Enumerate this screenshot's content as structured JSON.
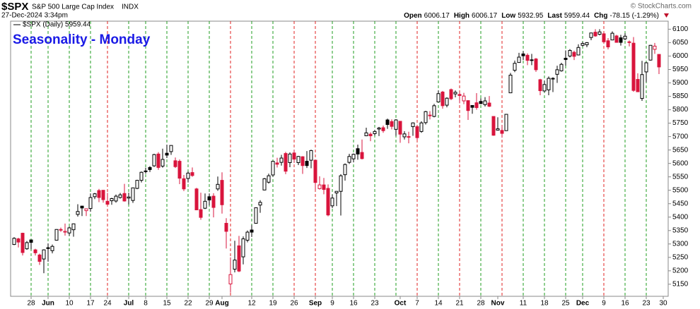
{
  "header": {
    "symbol": "$SPX",
    "name": "S&P 500 Large Cap Index",
    "exchange": "INDX",
    "datetime": "27-Dec-2024 3:34pm",
    "copyright": "© StockCharts.com",
    "quote": [
      {
        "label": "Open",
        "value": "6006.17"
      },
      {
        "label": "High",
        "value": "6006.17"
      },
      {
        "label": "Low",
        "value": "5932.95"
      },
      {
        "label": "Last",
        "value": "5959.44"
      },
      {
        "label": "Chg",
        "value": "-78.15 (-1.29%)"
      }
    ]
  },
  "chart_data": {
    "type": "candlestick",
    "title": "Seasonality - Monday",
    "legend": "$SPX (Daily) 5959.44",
    "up_color": "#000000",
    "down_color": "#d9143c",
    "monday_up_color": "#1f9e1f",
    "monday_down_color": "#e02020",
    "x": [
      "2024-05-21",
      "2024-05-22",
      "2024-05-23",
      "2024-05-24",
      "2024-05-28",
      "2024-05-29",
      "2024-05-30",
      "2024-05-31",
      "2024-06-03",
      "2024-06-04",
      "2024-06-05",
      "2024-06-06",
      "2024-06-07",
      "2024-06-10",
      "2024-06-11",
      "2024-06-12",
      "2024-06-13",
      "2024-06-14",
      "2024-06-17",
      "2024-06-18",
      "2024-06-20",
      "2024-06-21",
      "2024-06-24",
      "2024-06-25",
      "2024-06-26",
      "2024-06-27",
      "2024-06-28",
      "2024-07-01",
      "2024-07-02",
      "2024-07-03",
      "2024-07-05",
      "2024-07-08",
      "2024-07-09",
      "2024-07-10",
      "2024-07-11",
      "2024-07-12",
      "2024-07-15",
      "2024-07-16",
      "2024-07-17",
      "2024-07-18",
      "2024-07-19",
      "2024-07-22",
      "2024-07-23",
      "2024-07-24",
      "2024-07-25",
      "2024-07-26",
      "2024-07-29",
      "2024-07-30",
      "2024-07-31",
      "2024-08-01",
      "2024-08-02",
      "2024-08-05",
      "2024-08-06",
      "2024-08-07",
      "2024-08-08",
      "2024-08-09",
      "2024-08-12",
      "2024-08-13",
      "2024-08-14",
      "2024-08-15",
      "2024-08-16",
      "2024-08-19",
      "2024-08-20",
      "2024-08-21",
      "2024-08-22",
      "2024-08-23",
      "2024-08-26",
      "2024-08-27",
      "2024-08-28",
      "2024-08-29",
      "2024-08-30",
      "2024-09-03",
      "2024-09-04",
      "2024-09-05",
      "2024-09-06",
      "2024-09-09",
      "2024-09-10",
      "2024-09-11",
      "2024-09-12",
      "2024-09-13",
      "2024-09-16",
      "2024-09-17",
      "2024-09-18",
      "2024-09-19",
      "2024-09-20",
      "2024-09-23",
      "2024-09-24",
      "2024-09-25",
      "2024-09-26",
      "2024-09-27",
      "2024-09-30",
      "2024-10-01",
      "2024-10-02",
      "2024-10-03",
      "2024-10-04",
      "2024-10-07",
      "2024-10-08",
      "2024-10-09",
      "2024-10-10",
      "2024-10-11",
      "2024-10-14",
      "2024-10-15",
      "2024-10-16",
      "2024-10-17",
      "2024-10-18",
      "2024-10-21",
      "2024-10-22",
      "2024-10-23",
      "2024-10-24",
      "2024-10-25",
      "2024-10-28",
      "2024-10-29",
      "2024-10-30",
      "2024-10-31",
      "2024-11-01",
      "2024-11-04",
      "2024-11-05",
      "2024-11-06",
      "2024-11-07",
      "2024-11-08",
      "2024-11-11",
      "2024-11-12",
      "2024-11-13",
      "2024-11-14",
      "2024-11-15",
      "2024-11-18",
      "2024-11-19",
      "2024-11-20",
      "2024-11-21",
      "2024-11-22",
      "2024-11-25",
      "2024-11-26",
      "2024-11-27",
      "2024-11-29",
      "2024-12-02",
      "2024-12-03",
      "2024-12-04",
      "2024-12-05",
      "2024-12-06",
      "2024-12-09",
      "2024-12-10",
      "2024-12-11",
      "2024-12-12",
      "2024-12-13",
      "2024-12-16",
      "2024-12-17",
      "2024-12-18",
      "2024-12-19",
      "2024-12-20",
      "2024-12-23",
      "2024-12-24",
      "2024-12-26",
      "2024-12-27"
    ],
    "ohlc": [
      [
        5298,
        5325,
        5296,
        5321
      ],
      [
        5319,
        5323,
        5287,
        5307
      ],
      [
        5340,
        5342,
        5257,
        5268
      ],
      [
        5282,
        5311,
        5278,
        5305
      ],
      [
        5315,
        5315,
        5280,
        5306
      ],
      [
        5278,
        5282,
        5257,
        5267
      ],
      [
        5259,
        5264,
        5222,
        5235
      ],
      [
        5244,
        5280,
        5191,
        5278
      ],
      [
        5286,
        5302,
        5234,
        5283
      ],
      [
        5275,
        5298,
        5265,
        5291
      ],
      [
        5314,
        5355,
        5313,
        5354
      ],
      [
        5354,
        5361,
        5345,
        5352
      ],
      [
        5344,
        5376,
        5331,
        5347
      ],
      [
        5341,
        5365,
        5331,
        5360
      ],
      [
        5353,
        5376,
        5327,
        5375
      ],
      [
        5410,
        5448,
        5402,
        5421
      ],
      [
        5441,
        5442,
        5404,
        5434
      ],
      [
        5424,
        5432,
        5404,
        5431
      ],
      [
        5432,
        5488,
        5420,
        5473
      ],
      [
        5476,
        5490,
        5467,
        5487
      ],
      [
        5499,
        5505,
        5456,
        5473
      ],
      [
        5500,
        5500,
        5454,
        5465
      ],
      [
        5459,
        5490,
        5447,
        5448
      ],
      [
        5461,
        5472,
        5446,
        5469
      ],
      [
        5460,
        5484,
        5454,
        5478
      ],
      [
        5473,
        5490,
        5469,
        5483
      ],
      [
        5488,
        5524,
        5458,
        5460
      ],
      [
        5471,
        5491,
        5447,
        5475
      ],
      [
        5462,
        5510,
        5453,
        5509
      ],
      [
        5507,
        5539,
        5504,
        5537
      ],
      [
        5537,
        5570,
        5529,
        5567
      ],
      [
        5572,
        5584,
        5562,
        5572
      ],
      [
        5585,
        5590,
        5568,
        5577
      ],
      [
        5591,
        5636,
        5587,
        5633
      ],
      [
        5635,
        5642,
        5576,
        5585
      ],
      [
        5590,
        5655,
        5584,
        5615
      ],
      [
        5638,
        5670,
        5620,
        5631
      ],
      [
        5644,
        5667,
        5632,
        5667
      ],
      [
        5610,
        5622,
        5583,
        5588
      ],
      [
        5608,
        5615,
        5523,
        5545
      ],
      [
        5543,
        5557,
        5497,
        5505
      ],
      [
        5544,
        5570,
        5529,
        5564
      ],
      [
        5566,
        5585,
        5550,
        5555
      ],
      [
        5505,
        5509,
        5427,
        5427
      ],
      [
        5428,
        5491,
        5390,
        5399
      ],
      [
        5433,
        5488,
        5430,
        5459
      ],
      [
        5476,
        5488,
        5444,
        5464
      ],
      [
        5478,
        5489,
        5399,
        5436
      ],
      [
        5505,
        5551,
        5498,
        5522
      ],
      [
        5537,
        5567,
        5413,
        5446
      ],
      [
        5377,
        5396,
        5283,
        5347
      ],
      [
        5151,
        5250,
        5119,
        5186
      ],
      [
        5206,
        5312,
        5194,
        5240
      ],
      [
        5293,
        5330,
        5195,
        5199
      ],
      [
        5252,
        5328,
        5224,
        5319
      ],
      [
        5314,
        5350,
        5306,
        5344
      ],
      [
        5352,
        5371,
        5326,
        5344
      ],
      [
        5377,
        5435,
        5377,
        5435
      ],
      [
        5445,
        5463,
        5416,
        5455
      ],
      [
        5501,
        5546,
        5500,
        5543
      ],
      [
        5530,
        5562,
        5525,
        5554
      ],
      [
        5557,
        5608,
        5550,
        5608
      ],
      [
        5602,
        5621,
        5585,
        5597
      ],
      [
        5604,
        5632,
        5592,
        5620
      ],
      [
        5637,
        5643,
        5560,
        5571
      ],
      [
        5603,
        5641,
        5586,
        5635
      ],
      [
        5639,
        5651,
        5602,
        5616
      ],
      [
        5603,
        5628,
        5594,
        5626
      ],
      [
        5625,
        5627,
        5561,
        5592
      ],
      [
        5608,
        5646,
        5583,
        5592
      ],
      [
        5612,
        5651,
        5582,
        5648
      ],
      [
        5612,
        5612,
        5501,
        5529
      ],
      [
        5506,
        5552,
        5503,
        5520
      ],
      [
        5520,
        5546,
        5485,
        5503
      ],
      [
        5507,
        5522,
        5403,
        5408
      ],
      [
        5442,
        5484,
        5434,
        5471
      ],
      [
        5490,
        5497,
        5441,
        5496
      ],
      [
        5496,
        5560,
        5406,
        5554
      ],
      [
        5558,
        5600,
        5536,
        5596
      ],
      [
        5604,
        5636,
        5598,
        5626
      ],
      [
        5617,
        5637,
        5604,
        5634
      ],
      [
        5655,
        5670,
        5614,
        5635
      ],
      [
        5641,
        5689,
        5615,
        5618
      ],
      [
        5703,
        5733,
        5702,
        5714
      ],
      [
        5709,
        5716,
        5683,
        5703
      ],
      [
        5711,
        5725,
        5704,
        5719
      ],
      [
        5728,
        5736,
        5702,
        5732
      ],
      [
        5733,
        5741,
        5714,
        5722
      ],
      [
        5762,
        5767,
        5729,
        5745
      ],
      [
        5756,
        5764,
        5727,
        5738
      ],
      [
        5727,
        5765,
        5703,
        5762
      ],
      [
        5757,
        5758,
        5677,
        5709
      ],
      [
        5699,
        5720,
        5689,
        5710
      ],
      [
        5698,
        5718,
        5675,
        5700
      ],
      [
        5737,
        5753,
        5703,
        5751
      ],
      [
        5737,
        5739,
        5687,
        5696
      ],
      [
        5719,
        5757,
        5714,
        5751
      ],
      [
        5752,
        5796,
        5745,
        5793
      ],
      [
        5778,
        5795,
        5764,
        5780
      ],
      [
        5775,
        5822,
        5772,
        5815
      ],
      [
        5829,
        5872,
        5829,
        5860
      ],
      [
        5866,
        5870,
        5804,
        5815
      ],
      [
        5817,
        5846,
        5809,
        5843
      ],
      [
        5875,
        5879,
        5836,
        5841
      ],
      [
        5859,
        5872,
        5846,
        5865
      ],
      [
        5857,
        5867,
        5824,
        5853
      ],
      [
        5833,
        5863,
        5821,
        5851
      ],
      [
        5834,
        5835,
        5762,
        5797
      ],
      [
        5816,
        5817,
        5785,
        5809
      ],
      [
        5826,
        5862,
        5800,
        5808
      ],
      [
        5831,
        5843,
        5821,
        5823
      ],
      [
        5819,
        5847,
        5812,
        5833
      ],
      [
        5825,
        5851,
        5810,
        5813
      ],
      [
        5775,
        5775,
        5703,
        5705
      ],
      [
        5724,
        5772,
        5723,
        5729
      ],
      [
        5723,
        5741,
        5696,
        5712
      ],
      [
        5722,
        5783,
        5722,
        5783
      ],
      [
        5863,
        5937,
        5862,
        5929
      ],
      [
        5947,
        5983,
        5940,
        5973
      ],
      [
        5976,
        6012,
        5976,
        5996
      ],
      [
        6008,
        6018,
        5985,
        6001
      ],
      [
        6003,
        6010,
        5966,
        5984
      ],
      [
        5986,
        6008,
        5966,
        5985
      ],
      [
        5989,
        5993,
        5941,
        5949
      ],
      [
        5912,
        5915,
        5854,
        5871
      ],
      [
        5870,
        5909,
        5865,
        5894
      ],
      [
        5874,
        5924,
        5854,
        5917
      ],
      [
        5915,
        5921,
        5866,
        5917
      ],
      [
        5932,
        5964,
        5900,
        5949
      ],
      [
        5945,
        5975,
        5942,
        5969
      ],
      [
        5992,
        6021,
        5964,
        5987
      ],
      [
        6000,
        6026,
        5995,
        6021
      ],
      [
        6014,
        6020,
        5985,
        5999
      ],
      [
        6004,
        6044,
        6003,
        6032
      ],
      [
        6040,
        6053,
        6035,
        6047
      ],
      [
        6042,
        6052,
        6033,
        6050
      ],
      [
        6069,
        6087,
        6059,
        6086
      ],
      [
        6089,
        6100,
        6072,
        6075
      ],
      [
        6081,
        6100,
        6077,
        6090
      ],
      [
        6083,
        6088,
        6047,
        6053
      ],
      [
        6057,
        6067,
        6025,
        6034
      ],
      [
        6060,
        6092,
        6059,
        6085
      ],
      [
        6075,
        6079,
        6051,
        6051
      ],
      [
        6068,
        6079,
        6039,
        6051
      ],
      [
        6064,
        6085,
        6059,
        6074
      ],
      [
        6053,
        6058,
        6036,
        6051
      ],
      [
        6048,
        6071,
        5867,
        5872
      ],
      [
        5913,
        5936,
        5867,
        5867
      ],
      [
        5842,
        5982,
        5833,
        5931
      ],
      [
        5941,
        5978,
        5903,
        5975
      ],
      [
        5985,
        6041,
        5983,
        6040
      ],
      [
        6025,
        6049,
        6008,
        6037
      ],
      [
        6006.17,
        6006.17,
        5932.95,
        5959.44
      ]
    ],
    "ylim": [
      5105,
      6130
    ],
    "yticks": [
      5150,
      5200,
      5250,
      5300,
      5350,
      5400,
      5450,
      5500,
      5550,
      5600,
      5650,
      5700,
      5750,
      5800,
      5850,
      5900,
      5950,
      6000,
      6050,
      6100
    ],
    "xticks": [
      {
        "value": "2024-05-28",
        "label": "28"
      },
      {
        "value": "2024-06-03",
        "label": "Jun"
      },
      {
        "value": "2024-06-10",
        "label": "10"
      },
      {
        "value": "2024-06-17",
        "label": "17"
      },
      {
        "value": "2024-06-24",
        "label": "24"
      },
      {
        "value": "2024-07-01",
        "label": "Jul"
      },
      {
        "value": "2024-07-08",
        "label": "8"
      },
      {
        "value": "2024-07-15",
        "label": "15"
      },
      {
        "value": "2024-07-22",
        "label": "22"
      },
      {
        "value": "2024-07-29",
        "label": "29"
      },
      {
        "value": "2024-08-01",
        "label": "Aug"
      },
      {
        "value": "2024-08-12",
        "label": "12"
      },
      {
        "value": "2024-08-19",
        "label": "19"
      },
      {
        "value": "2024-08-26",
        "label": "26"
      },
      {
        "value": "2024-09-03",
        "label": "Sep"
      },
      {
        "value": "2024-09-09",
        "label": "9"
      },
      {
        "value": "2024-09-16",
        "label": "16"
      },
      {
        "value": "2024-09-23",
        "label": "23"
      },
      {
        "value": "2024-10-01",
        "label": "Oct"
      },
      {
        "value": "2024-10-07",
        "label": "7"
      },
      {
        "value": "2024-10-14",
        "label": "14"
      },
      {
        "value": "2024-10-21",
        "label": "21"
      },
      {
        "value": "2024-10-28",
        "label": "28"
      },
      {
        "value": "2024-11-01",
        "label": "Nov"
      },
      {
        "value": "2024-11-11",
        "label": "11"
      },
      {
        "value": "2024-11-18",
        "label": "18"
      },
      {
        "value": "2024-11-25",
        "label": "25"
      },
      {
        "value": "2024-12-02",
        "label": "Dec"
      },
      {
        "value": "2024-12-09",
        "label": "9"
      },
      {
        "value": "2024-12-16",
        "label": "16"
      },
      {
        "value": "2024-12-23",
        "label": "23"
      },
      {
        "value": "2024-12-30",
        "label": "30"
      }
    ]
  }
}
